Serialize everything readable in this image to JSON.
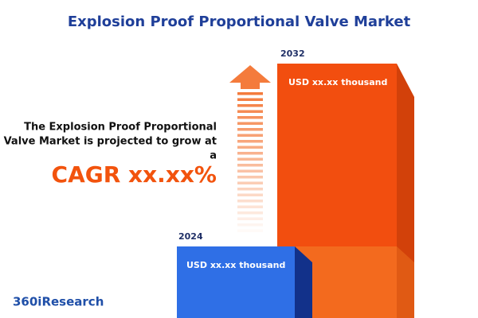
{
  "header": {
    "title": "Explosion Proof Proportional Valve Market"
  },
  "statement": {
    "lines": [
      "The Explosion Proof Proportional",
      "Valve Market is projected to grow at",
      "a"
    ],
    "cagr": "CAGR xx.xx%"
  },
  "bars": [
    {
      "year": "2024",
      "label": "USD xx.xx thousand"
    },
    {
      "year": "2032",
      "label": "USD xx.xx thousand"
    }
  ],
  "logo": "360iResearch"
}
